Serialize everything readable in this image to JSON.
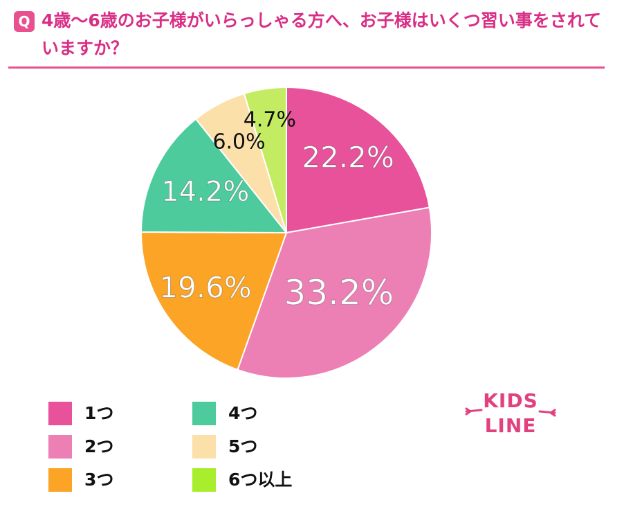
{
  "question": {
    "badge": "Q",
    "text": "4歳〜6歳のお子様がいらっしゃる方へ、お子様はいくつ習い事をされていますか？"
  },
  "chart_data": {
    "type": "pie",
    "title": "",
    "categories": [
      "1つ",
      "2つ",
      "3つ",
      "4つ",
      "5つ",
      "6つ以上"
    ],
    "values": [
      22.2,
      33.2,
      19.6,
      14.2,
      6.0,
      4.7
    ],
    "labels": [
      "22.2%",
      "33.2%",
      "19.6%",
      "14.2%",
      "6.0%",
      "4.7%"
    ],
    "colors": [
      "#e8529a",
      "#ec80b4",
      "#fba426",
      "#4ecb9c",
      "#fbe0aa",
      "#c4ec62"
    ],
    "label_colors": [
      "#ffffff",
      "#ffffff",
      "#ffffff",
      "#ffffff",
      "#111111",
      "#111111"
    ],
    "start": "12 o'clock, clockwise",
    "legend": "bottom-left"
  },
  "legend": {
    "swatch_colors": [
      "#e8529a",
      "#ec80b4",
      "#fba426",
      "#4ecb9c",
      "#fbe0aa",
      "#a8ee2c"
    ]
  },
  "logo": {
    "text_top": "KIDS",
    "text_bottom": "LINE",
    "color": "#e2407f"
  }
}
